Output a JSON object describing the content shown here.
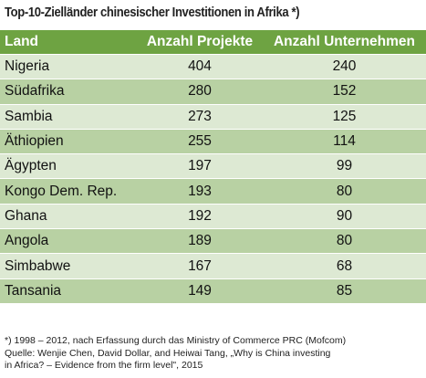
{
  "title": "Top-10-Zielländer chinesischer Investitionen in Afrika *)",
  "colors": {
    "header_bg": "#6ea342",
    "row_dark": "#b8d1a3",
    "row_light": "#dde9d3",
    "header_text": "#ffffff"
  },
  "chart_data": {
    "type": "table",
    "title": "Top-10-Zielländer chinesischer Investitionen in Afrika *)",
    "columns": [
      "Land",
      "Anzahl Projekte",
      "Anzahl Unternehmen"
    ],
    "rows": [
      [
        "Nigeria",
        "404",
        "240"
      ],
      [
        "Südafrika",
        "280",
        "152"
      ],
      [
        "Sambia",
        "273",
        "125"
      ],
      [
        "Äthiopien",
        "255",
        "114"
      ],
      [
        "Ägypten",
        "197",
        "99"
      ],
      [
        "Kongo Dem. Rep.",
        "193",
        "80"
      ],
      [
        "Ghana",
        "192",
        "90"
      ],
      [
        "Angola",
        "189",
        "80"
      ],
      [
        "Simbabwe",
        "167",
        "68"
      ],
      [
        "Tansania",
        "149",
        "85"
      ]
    ]
  },
  "footnote": {
    "line1": "*) 1998 – 2012, nach Erfassung durch das Ministry of Commerce PRC (Mofcom)",
    "line2": "Quelle: Wenjie Chen, David Dollar, and Heiwai Tang, „Why is China investing",
    "line3": "in Africa? – Evidence from the firm level\", 2015"
  }
}
